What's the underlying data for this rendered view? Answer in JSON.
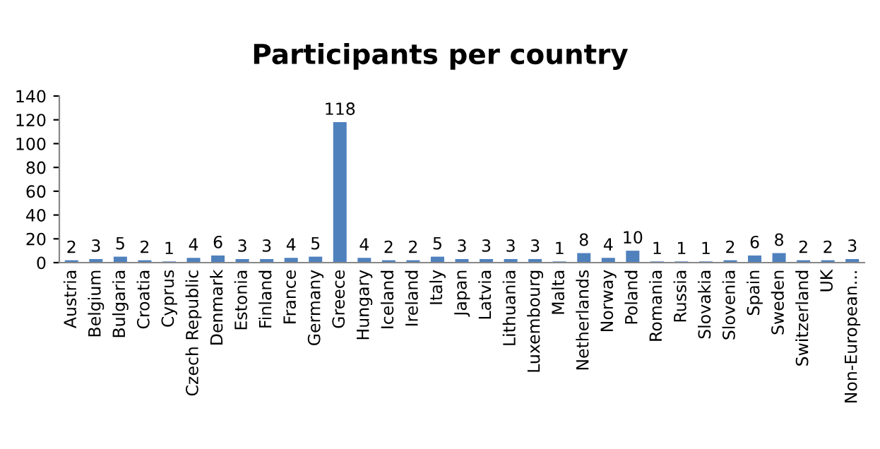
{
  "chart_data": {
    "type": "bar",
    "title": "Participants per country",
    "categories": [
      "Austria",
      "Belgium",
      "Bulgaria",
      "Croatia",
      "Cyprus",
      "Czech Republic",
      "Denmark",
      "Estonia",
      "Finland",
      "France",
      "Germany",
      "Greece",
      "Hungary",
      "Iceland",
      "Ireland",
      "Italy",
      "Japan",
      "Latvia",
      "Lithuania",
      "Luxembourg",
      "Malta",
      "Netherlands",
      "Norway",
      "Poland",
      "Romania",
      "Russia",
      "Slovakia",
      "Slovenia",
      "Spain",
      "Sweden",
      "Switzerland",
      "UK",
      "Non-European..."
    ],
    "values": [
      2,
      3,
      5,
      2,
      1,
      4,
      6,
      3,
      3,
      4,
      5,
      118,
      4,
      2,
      2,
      5,
      3,
      3,
      3,
      3,
      1,
      8,
      4,
      10,
      1,
      1,
      1,
      2,
      6,
      8,
      2,
      2,
      3
    ],
    "color": "#4f81bd",
    "ylim": [
      0,
      140
    ],
    "yticks": [
      0,
      20,
      40,
      60,
      80,
      100,
      120,
      140
    ],
    "data_labels": true,
    "grid": false,
    "legend": false
  }
}
